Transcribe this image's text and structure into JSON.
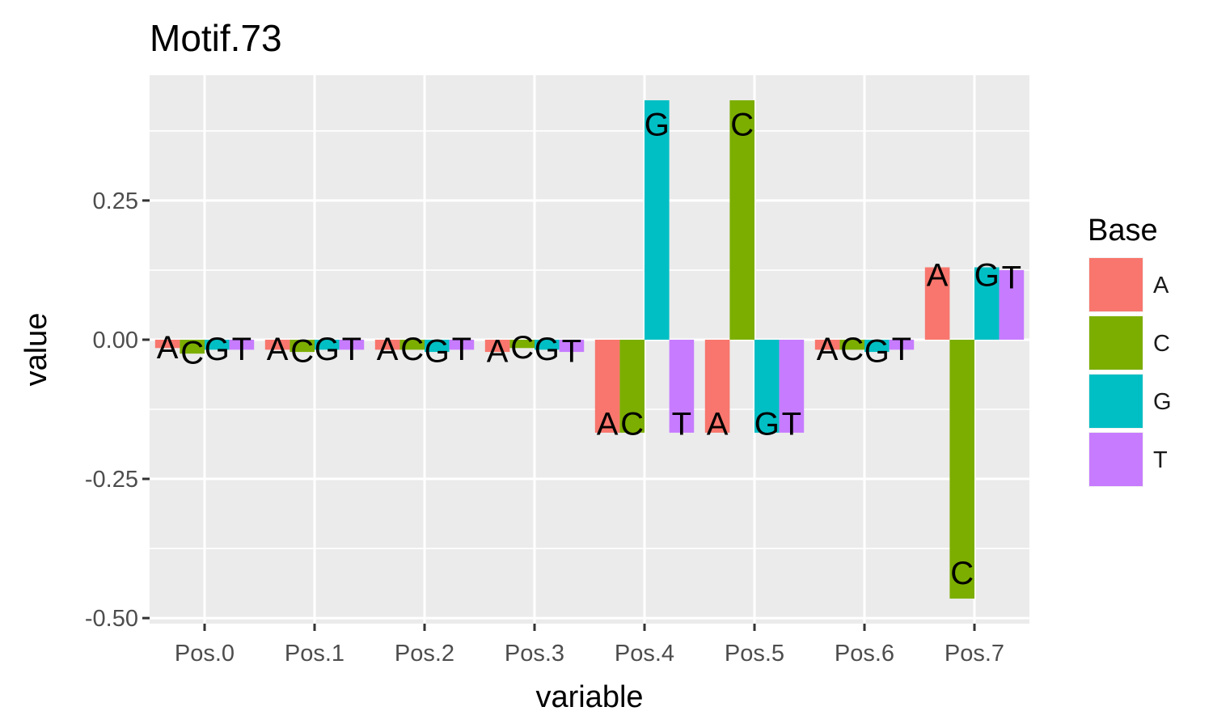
{
  "chart_data": {
    "type": "bar",
    "title": "Motif.73",
    "xlabel": "variable",
    "ylabel": "value",
    "ylim": [
      -0.51,
      0.475
    ],
    "yticks": [
      0.25,
      0.0,
      -0.25,
      -0.5
    ],
    "ytick_labels": [
      "0.25",
      "0.00",
      "-0.25",
      "-0.50"
    ],
    "grid": true,
    "categories": [
      "Pos.0",
      "Pos.1",
      "Pos.2",
      "Pos.3",
      "Pos.4",
      "Pos.5",
      "Pos.6",
      "Pos.7"
    ],
    "series": [
      {
        "name": "A",
        "color": "#F8766D",
        "values": [
          -0.015,
          -0.018,
          -0.018,
          -0.022,
          -0.167,
          -0.167,
          -0.018,
          0.13
        ]
      },
      {
        "name": "C",
        "color": "#7CAE00",
        "values": [
          -0.025,
          -0.022,
          -0.018,
          -0.015,
          -0.167,
          0.43,
          -0.018,
          -0.465
        ]
      },
      {
        "name": "G",
        "color": "#00BFC4",
        "values": [
          -0.018,
          -0.018,
          -0.022,
          -0.018,
          0.43,
          -0.167,
          -0.022,
          0.13
        ]
      },
      {
        "name": "T",
        "color": "#C77CFF",
        "values": [
          -0.018,
          -0.018,
          -0.018,
          -0.022,
          -0.167,
          -0.167,
          -0.018,
          0.125
        ]
      }
    ],
    "bar_labels": [
      [
        "A",
        "C",
        "G",
        "T"
      ],
      [
        "A",
        "C",
        "G",
        "T"
      ],
      [
        "A",
        "C",
        "G",
        "T"
      ],
      [
        "A",
        "C",
        "G",
        "T"
      ],
      [
        "A",
        "C",
        "G",
        "T"
      ],
      [
        "A",
        "C",
        "G",
        "T"
      ],
      [
        "A",
        "C",
        "G",
        "T"
      ],
      [
        "A",
        "C",
        "G",
        "T"
      ]
    ],
    "legend": {
      "title": "Base",
      "placement": "right",
      "entries": [
        "A",
        "C",
        "G",
        "T"
      ]
    }
  }
}
